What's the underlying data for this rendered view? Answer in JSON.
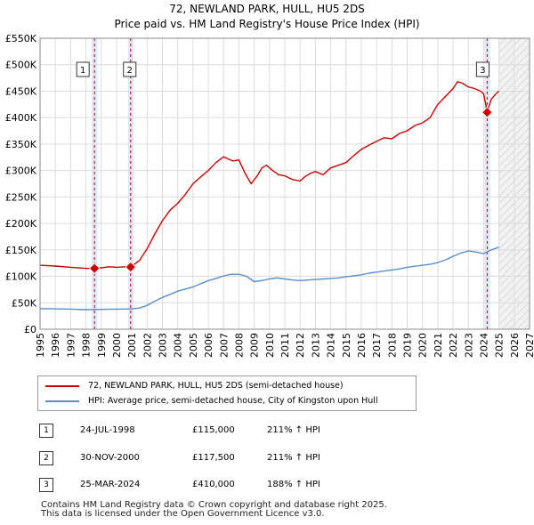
{
  "header": {
    "title": "72, NEWLAND PARK, HULL, HU5 2DS",
    "subtitle": "Price paid vs. HM Land Registry's House Price Index (HPI)"
  },
  "colors": {
    "property": "#cc0000",
    "hpi": "#5b8fcc",
    "grid": "#dcdcdc",
    "band": "#dce8f7",
    "vline": "#cc0000"
  },
  "chart_data": {
    "type": "line",
    "title": "Price paid vs. HM Land Registry's House Price Index (HPI)",
    "x_range": [
      1995,
      2027
    ],
    "ylim": [
      0,
      550000
    ],
    "y_ticks": [
      0,
      50000,
      100000,
      150000,
      200000,
      250000,
      300000,
      350000,
      400000,
      450000,
      500000,
      550000
    ],
    "y_tick_labels": [
      "£0",
      "£50K",
      "£100K",
      "£150K",
      "£200K",
      "£250K",
      "£300K",
      "£350K",
      "£400K",
      "£450K",
      "£500K",
      "£550K"
    ],
    "x_ticks": [
      1995,
      1996,
      1997,
      1998,
      1999,
      2000,
      2001,
      2002,
      2003,
      2004,
      2005,
      2006,
      2007,
      2008,
      2009,
      2010,
      2011,
      2012,
      2013,
      2014,
      2015,
      2016,
      2017,
      2018,
      2019,
      2020,
      2021,
      2022,
      2023,
      2024,
      2025,
      2026,
      2027
    ],
    "forecast_start": 2025.0,
    "series": [
      {
        "name": "72, NEWLAND PARK, HULL, HU5 2DS (semi-detached house)",
        "x": [
          1995.0,
          1996.0,
          1997.0,
          1998.0,
          1998.56,
          1999.0,
          1999.5,
          2000.0,
          2000.5,
          2000.92,
          2001.5,
          2002.0,
          2002.5,
          2003.0,
          2003.5,
          2004.0,
          2004.5,
          2005.0,
          2005.5,
          2006.0,
          2006.5,
          2007.0,
          2007.3,
          2007.6,
          2008.0,
          2008.4,
          2008.8,
          2009.2,
          2009.5,
          2009.8,
          2010.2,
          2010.6,
          2011.0,
          2011.5,
          2012.0,
          2012.3,
          2012.7,
          2013.0,
          2013.5,
          2014.0,
          2014.5,
          2015.0,
          2015.5,
          2016.0,
          2016.5,
          2017.0,
          2017.5,
          2018.0,
          2018.5,
          2019.0,
          2019.5,
          2020.0,
          2020.5,
          2021.0,
          2021.5,
          2022.0,
          2022.3,
          2022.6,
          2023.0,
          2023.4,
          2023.8,
          2024.0,
          2024.1,
          2024.23,
          2024.5,
          2024.8,
          2025.0
        ],
        "y": [
          121000,
          119500,
          117000,
          115000,
          115000,
          116000,
          118000,
          117000,
          118000,
          117500,
          130000,
          152000,
          180000,
          205000,
          225000,
          238000,
          255000,
          275000,
          288000,
          300000,
          315000,
          326000,
          322000,
          318000,
          320000,
          295000,
          275000,
          290000,
          305000,
          310000,
          300000,
          292000,
          290000,
          283000,
          280000,
          288000,
          295000,
          298000,
          292000,
          305000,
          310000,
          315000,
          328000,
          340000,
          348000,
          355000,
          362000,
          360000,
          370000,
          375000,
          385000,
          390000,
          400000,
          425000,
          440000,
          455000,
          468000,
          465000,
          458000,
          455000,
          450000,
          445000,
          430000,
          410000,
          435000,
          445000,
          450000
        ]
      },
      {
        "name": "HPI: Average price, semi-detached house, City of Kingston upon Hull",
        "x": [
          1995.0,
          1996.0,
          1997.0,
          1998.0,
          1999.0,
          2000.0,
          2001.0,
          2001.5,
          2002.0,
          2002.5,
          2003.0,
          2003.5,
          2004.0,
          2004.5,
          2005.0,
          2005.5,
          2006.0,
          2006.5,
          2007.0,
          2007.5,
          2008.0,
          2008.5,
          2009.0,
          2009.5,
          2010.0,
          2010.5,
          2011.0,
          2011.5,
          2012.0,
          2012.5,
          2013.0,
          2013.5,
          2014.0,
          2014.5,
          2015.0,
          2015.5,
          2016.0,
          2016.5,
          2017.0,
          2017.5,
          2018.0,
          2018.5,
          2019.0,
          2019.5,
          2020.0,
          2020.5,
          2021.0,
          2021.5,
          2022.0,
          2022.5,
          2023.0,
          2023.5,
          2024.0,
          2024.5,
          2025.0
        ],
        "y": [
          39000,
          38500,
          38000,
          37000,
          37500,
          38000,
          38500,
          40000,
          45000,
          53000,
          60000,
          66000,
          72000,
          76000,
          80000,
          86000,
          92000,
          96000,
          101000,
          104000,
          104000,
          100000,
          90000,
          92000,
          95000,
          97000,
          95000,
          93000,
          92000,
          93000,
          94000,
          95000,
          96000,
          97000,
          99000,
          101000,
          103000,
          106000,
          108000,
          110000,
          112000,
          114000,
          117000,
          119000,
          121000,
          123000,
          126000,
          131000,
          138000,
          144000,
          148000,
          146000,
          143000,
          150000,
          155000
        ]
      }
    ],
    "sales": [
      {
        "label": "1",
        "x": 1998.56,
        "y": 115000
      },
      {
        "label": "2",
        "x": 2000.92,
        "y": 117500
      },
      {
        "label": "3",
        "x": 2024.23,
        "y": 410000
      }
    ]
  },
  "legend": {
    "property_label": "72, NEWLAND PARK, HULL, HU5 2DS (semi-detached house)",
    "hpi_label": "HPI: Average price, semi-detached house, City of Kingston upon Hull"
  },
  "transactions": [
    {
      "num": "1",
      "date": "24-JUL-1998",
      "price": "£115,000",
      "hpi": "211% ↑ HPI"
    },
    {
      "num": "2",
      "date": "30-NOV-2000",
      "price": "£117,500",
      "hpi": "211% ↑ HPI"
    },
    {
      "num": "3",
      "date": "25-MAR-2024",
      "price": "£410,000",
      "hpi": "188% ↑ HPI"
    }
  ],
  "footer": {
    "line1": "Contains HM Land Registry data © Crown copyright and database right 2025.",
    "line2": "This data is licensed under the Open Government Licence v3.0."
  }
}
